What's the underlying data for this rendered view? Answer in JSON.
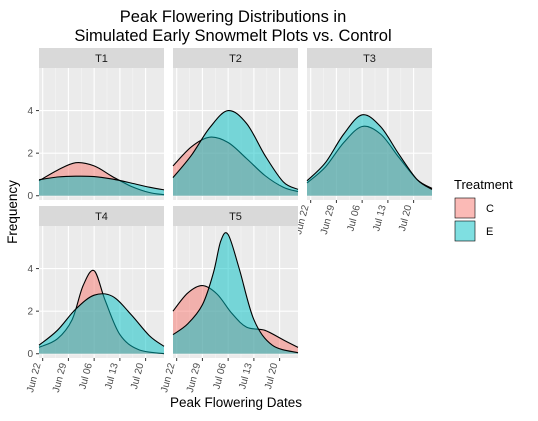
{
  "chart_data": {
    "type": "area",
    "title_lines": [
      "Peak Flowering Distributions in",
      "Simulated Early Snowmelt Plots vs. Control"
    ],
    "xlabel": "Peak Flowering Dates",
    "ylabel": "Frequency",
    "x_ticks": [
      "Jun 22",
      "Jun 29",
      "Jul 06",
      "Jul 13",
      "Jul 20"
    ],
    "y_ticks": [
      0,
      2,
      4
    ],
    "xlim": [
      "2018-06-21",
      "2018-07-25"
    ],
    "ylim": [
      -0.2,
      6.0
    ],
    "legend": {
      "title": "Treatment",
      "placement": "right",
      "items": [
        {
          "label": "C",
          "color": "#F8766D"
        },
        {
          "label": "E",
          "color": "#00BFC4"
        }
      ]
    },
    "panels": [
      {
        "label": "T1",
        "series": [
          {
            "name": "C",
            "x": [
              "2018-06-21",
              "2018-06-26",
              "2018-07-01",
              "2018-07-06",
              "2018-07-11",
              "2018-07-16",
              "2018-07-21",
              "2018-07-25"
            ],
            "y": [
              0.7,
              1.2,
              1.55,
              1.4,
              0.9,
              0.45,
              0.15,
              0.05
            ]
          },
          {
            "name": "E",
            "x": [
              "2018-06-21",
              "2018-06-26",
              "2018-07-01",
              "2018-07-06",
              "2018-07-11",
              "2018-07-16",
              "2018-07-21",
              "2018-07-25"
            ],
            "y": [
              0.75,
              0.88,
              0.92,
              0.9,
              0.78,
              0.6,
              0.4,
              0.28
            ]
          }
        ]
      },
      {
        "label": "T2",
        "series": [
          {
            "name": "C",
            "x": [
              "2018-06-21",
              "2018-06-26",
              "2018-07-01",
              "2018-07-06",
              "2018-07-11",
              "2018-07-16",
              "2018-07-21",
              "2018-07-25"
            ],
            "y": [
              1.4,
              2.3,
              2.75,
              2.5,
              1.75,
              0.95,
              0.4,
              0.2
            ]
          },
          {
            "name": "E",
            "x": [
              "2018-06-21",
              "2018-06-26",
              "2018-07-01",
              "2018-07-06",
              "2018-07-11",
              "2018-07-16",
              "2018-07-21",
              "2018-07-25"
            ],
            "y": [
              0.85,
              1.9,
              3.2,
              4.0,
              3.4,
              1.9,
              0.65,
              0.3
            ]
          }
        ]
      },
      {
        "label": "T3",
        "series": [
          {
            "name": "C",
            "x": [
              "2018-06-21",
              "2018-06-26",
              "2018-07-01",
              "2018-07-06",
              "2018-07-11",
              "2018-07-16",
              "2018-07-21",
              "2018-07-25"
            ],
            "y": [
              0.6,
              1.35,
              2.5,
              3.25,
              2.9,
              1.8,
              0.75,
              0.35
            ]
          },
          {
            "name": "E",
            "x": [
              "2018-06-21",
              "2018-06-26",
              "2018-07-01",
              "2018-07-06",
              "2018-07-11",
              "2018-07-16",
              "2018-07-21",
              "2018-07-25"
            ],
            "y": [
              0.7,
              1.55,
              2.9,
              3.8,
              3.25,
              1.95,
              0.75,
              0.3
            ]
          }
        ]
      },
      {
        "label": "T4",
        "series": [
          {
            "name": "C",
            "x": [
              "2018-06-21",
              "2018-06-26",
              "2018-06-30",
              "2018-07-03",
              "2018-07-06",
              "2018-07-09",
              "2018-07-13",
              "2018-07-18",
              "2018-07-25"
            ],
            "y": [
              0.3,
              0.7,
              1.6,
              3.2,
              3.9,
              2.5,
              0.9,
              0.2,
              0.0
            ]
          },
          {
            "name": "E",
            "x": [
              "2018-06-21",
              "2018-06-26",
              "2018-07-01",
              "2018-07-06",
              "2018-07-11",
              "2018-07-16",
              "2018-07-21",
              "2018-07-25"
            ],
            "y": [
              0.4,
              1.1,
              2.1,
              2.75,
              2.7,
              1.85,
              0.85,
              0.35
            ]
          }
        ]
      },
      {
        "label": "T5",
        "series": [
          {
            "name": "C",
            "x": [
              "2018-06-21",
              "2018-06-25",
              "2018-06-29",
              "2018-07-03",
              "2018-07-07",
              "2018-07-11",
              "2018-07-16",
              "2018-07-21",
              "2018-07-25"
            ],
            "y": [
              2.0,
              2.85,
              3.2,
              2.8,
              1.9,
              1.25,
              1.1,
              0.65,
              0.3
            ]
          },
          {
            "name": "E",
            "x": [
              "2018-06-21",
              "2018-06-25",
              "2018-06-29",
              "2018-07-02",
              "2018-07-04",
              "2018-07-06",
              "2018-07-09",
              "2018-07-13",
              "2018-07-18",
              "2018-07-25"
            ],
            "y": [
              0.9,
              1.4,
              2.3,
              3.8,
              5.3,
              5.6,
              4.0,
              1.6,
              0.4,
              0.05
            ]
          }
        ]
      }
    ]
  }
}
